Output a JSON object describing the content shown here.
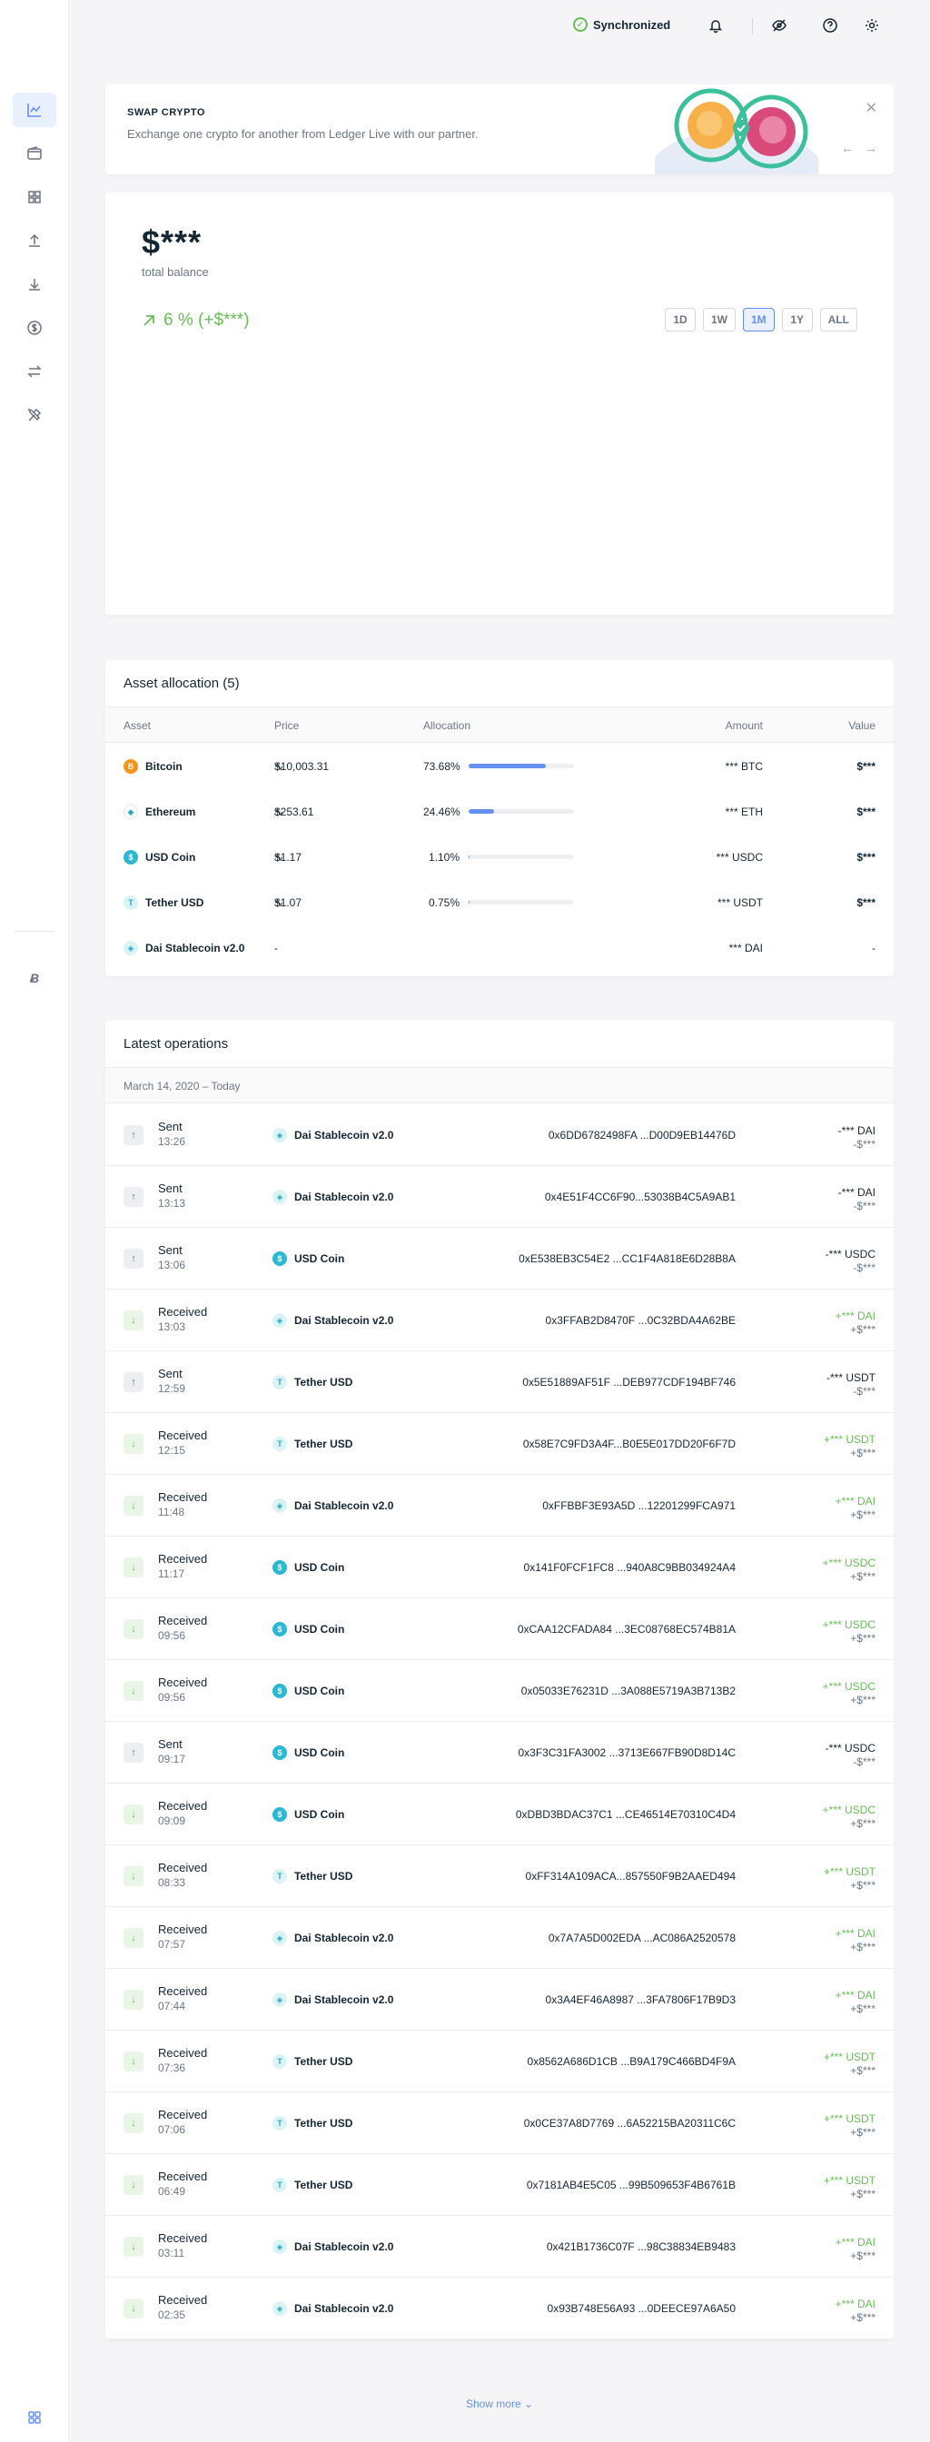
{
  "topbar": {
    "sync_label": "Synchronized",
    "icons": [
      "bell-icon",
      "eye-slash-icon",
      "help-icon",
      "gear-icon"
    ]
  },
  "sidebar": {
    "items": [
      "portfolio",
      "accounts",
      "manager",
      "send",
      "receive",
      "buy",
      "swap",
      "lend"
    ],
    "starred": "bitcoin"
  },
  "banner": {
    "title": "SWAP CRYPTO",
    "description": "Exchange one crypto for another from Ledger Live with our partner."
  },
  "balance": {
    "amount": "$***",
    "label": "total balance",
    "change": "6 % (+$***)",
    "periods": [
      "1D",
      "1W",
      "1M",
      "1Y",
      "ALL"
    ],
    "active_period": "1M"
  },
  "allocation": {
    "title": "Asset allocation (5)",
    "headers": {
      "asset": "Asset",
      "price": "Price",
      "allocation": "Allocation",
      "amount": "Amount",
      "value": "Value"
    },
    "rows": [
      {
        "name": "Bitcoin",
        "icon": "B",
        "coin": "btc",
        "price": "$10,003.31",
        "allocation": "73.68%",
        "fraction": 0.7368,
        "amount": "*** BTC",
        "value": "$***"
      },
      {
        "name": "Ethereum",
        "icon": "◆",
        "coin": "eth",
        "price": "$253.61",
        "allocation": "24.46%",
        "fraction": 0.2446,
        "amount": "*** ETH",
        "value": "$***"
      },
      {
        "name": "USD Coin",
        "icon": "$",
        "coin": "usdc",
        "price": "$1.17",
        "allocation": "1.10%",
        "fraction": 0.011,
        "amount": "*** USDC",
        "value": "$***"
      },
      {
        "name": "Tether USD",
        "icon": "T",
        "coin": "usdt",
        "price": "$1.07",
        "allocation": "0.75%",
        "fraction": 0.0075,
        "amount": "*** USDT",
        "value": "$***"
      },
      {
        "name": "Dai Stablecoin v2.0",
        "icon": "◈",
        "coin": "dai",
        "price": "-",
        "allocation": "",
        "fraction": null,
        "amount": "*** DAI",
        "value": "-"
      }
    ]
  },
  "operations": {
    "title": "Latest operations",
    "date_header": "March 14, 2020 – Today",
    "rows": [
      {
        "type": "Sent",
        "time": "13:26",
        "currency": "Dai Stablecoin v2.0",
        "coin": "dai",
        "address": "0x6DD6782498FA ...D00D9EB14476D",
        "amount": "-*** DAI",
        "fiat": "-$***"
      },
      {
        "type": "Sent",
        "time": "13:13",
        "currency": "Dai Stablecoin v2.0",
        "coin": "dai",
        "address": "0x4E51F4CC6F90...53038B4C5A9AB1",
        "amount": "-*** DAI",
        "fiat": "-$***"
      },
      {
        "type": "Sent",
        "time": "13:06",
        "currency": "USD Coin",
        "coin": "usdc",
        "address": "0xE538EB3C54E2 ...CC1F4A818E6D28B8A",
        "amount": "-*** USDC",
        "fiat": "-$***"
      },
      {
        "type": "Received",
        "time": "13:03",
        "currency": "Dai Stablecoin v2.0",
        "coin": "dai",
        "address": "0x3FFAB2D8470F ...0C32BDA4A62BE",
        "amount": "+*** DAI",
        "fiat": "+$***"
      },
      {
        "type": "Sent",
        "time": "12:59",
        "currency": "Tether USD",
        "coin": "usdt",
        "address": "0x5E51889AF51F ...DEB977CDF194BF746",
        "amount": "-*** USDT",
        "fiat": "-$***"
      },
      {
        "type": "Received",
        "time": "12:15",
        "currency": "Tether USD",
        "coin": "usdt",
        "address": "0x58E7C9FD3A4F...B0E5E017DD20F6F7D",
        "amount": "+*** USDT",
        "fiat": "+$***"
      },
      {
        "type": "Received",
        "time": "11:48",
        "currency": "Dai Stablecoin v2.0",
        "coin": "dai",
        "address": "0xFFBBF3E93A5D ...12201299FCA971",
        "amount": "+*** DAI",
        "fiat": "+$***"
      },
      {
        "type": "Received",
        "time": "11:17",
        "currency": "USD Coin",
        "coin": "usdc",
        "address": "0x141F0FCF1FC8 ...940A8C9BB034924A4",
        "amount": "+*** USDC",
        "fiat": "+$***"
      },
      {
        "type": "Received",
        "time": "09:56",
        "currency": "USD Coin",
        "coin": "usdc",
        "address": "0xCAA12CFADA84 ...3EC08768EC574B81A",
        "amount": "+*** USDC",
        "fiat": "+$***"
      },
      {
        "type": "Received",
        "time": "09:56",
        "currency": "USD Coin",
        "coin": "usdc",
        "address": "0x05033E76231D ...3A088E5719A3B713B2",
        "amount": "+*** USDC",
        "fiat": "+$***"
      },
      {
        "type": "Sent",
        "time": "09:17",
        "currency": "USD Coin",
        "coin": "usdc",
        "address": "0x3F3C31FA3002 ...3713E667FB90D8D14C",
        "amount": "-*** USDC",
        "fiat": "-$***"
      },
      {
        "type": "Received",
        "time": "09:09",
        "currency": "USD Coin",
        "coin": "usdc",
        "address": "0xDBD3BDAC37C1 ...CE46514E70310C4D4",
        "amount": "+*** USDC",
        "fiat": "+$***"
      },
      {
        "type": "Received",
        "time": "08:33",
        "currency": "Tether USD",
        "coin": "usdt",
        "address": "0xFF314A109ACA...857550F9B2AAED494",
        "amount": "+*** USDT",
        "fiat": "+$***"
      },
      {
        "type": "Received",
        "time": "07:57",
        "currency": "Dai Stablecoin v2.0",
        "coin": "dai",
        "address": "0x7A7A5D002EDA ...AC086A2520578",
        "amount": "+*** DAI",
        "fiat": "+$***"
      },
      {
        "type": "Received",
        "time": "07:44",
        "currency": "Dai Stablecoin v2.0",
        "coin": "dai",
        "address": "0x3A4EF46A8987 ...3FA7806F17B9D3",
        "amount": "+*** DAI",
        "fiat": "+$***"
      },
      {
        "type": "Received",
        "time": "07:36",
        "currency": "Tether USD",
        "coin": "usdt",
        "address": "0x8562A686D1CB ...B9A179C466BD4F9A",
        "amount": "+*** USDT",
        "fiat": "+$***"
      },
      {
        "type": "Received",
        "time": "07:06",
        "currency": "Tether USD",
        "coin": "usdt",
        "address": "0x0CE37A8D7769 ...6A52215BA20311C6C",
        "amount": "+*** USDT",
        "fiat": "+$***"
      },
      {
        "type": "Received",
        "time": "06:49",
        "currency": "Tether USD",
        "coin": "usdt",
        "address": "0x7181AB4E5C05 ...99B509653F4B6761B",
        "amount": "+*** USDT",
        "fiat": "+$***"
      },
      {
        "type": "Received",
        "time": "03:11",
        "currency": "Dai Stablecoin v2.0",
        "coin": "dai",
        "address": "0x421B1736C07F ...98C38834EB9483",
        "amount": "+*** DAI",
        "fiat": "+$***"
      },
      {
        "type": "Received",
        "time": "02:35",
        "currency": "Dai Stablecoin v2.0",
        "coin": "dai",
        "address": "0x93B748E56A93 ...0DEECE97A6A50",
        "amount": "+*** DAI",
        "fiat": "+$***"
      }
    ],
    "show_more": "Show more ⌄"
  },
  "coin_icons": {
    "btc": "B",
    "eth": "◆",
    "usdc": "$",
    "usdt": "T",
    "dai": "◈"
  },
  "colors": {
    "accent": "#6490f1",
    "positive": "#66be54",
    "text": "#142533",
    "muted": "#6b7785"
  }
}
